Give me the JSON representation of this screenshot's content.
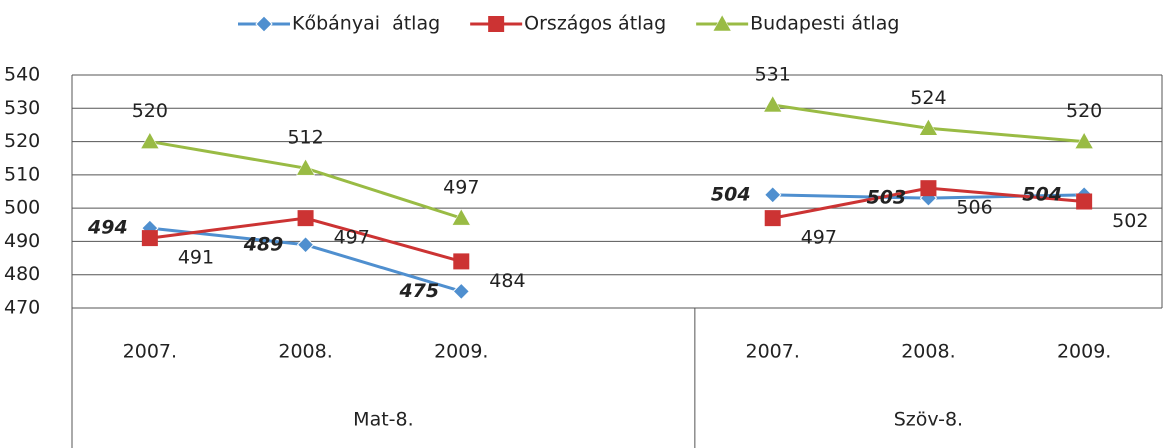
{
  "chart_data": {
    "type": "line",
    "categories": [
      "2007.",
      "2008.",
      "2009.",
      null,
      "2007.",
      "2008.",
      "2009."
    ],
    "groups": [
      {
        "label": "Mat-8.",
        "span": 4
      },
      {
        "label": "Szöv-8.",
        "span": 3
      }
    ],
    "series": [
      {
        "name": "Kőbányai  átlag",
        "color": "#4f8fcf",
        "marker": "diamond",
        "values": [
          494,
          489,
          475,
          null,
          504,
          503,
          504
        ]
      },
      {
        "name": "Országos átlag",
        "color": "#cc3333",
        "marker": "square",
        "values": [
          491,
          497,
          484,
          null,
          497,
          506,
          502
        ]
      },
      {
        "name": "Budapesti átlag",
        "color": "#99bb44",
        "marker": "triangle",
        "values": [
          520,
          512,
          497,
          null,
          531,
          524,
          520
        ]
      }
    ],
    "ylim": [
      470,
      540
    ],
    "yticks": [
      470,
      480,
      490,
      500,
      510,
      520,
      530,
      540
    ],
    "grid": true,
    "legend": "top"
  }
}
